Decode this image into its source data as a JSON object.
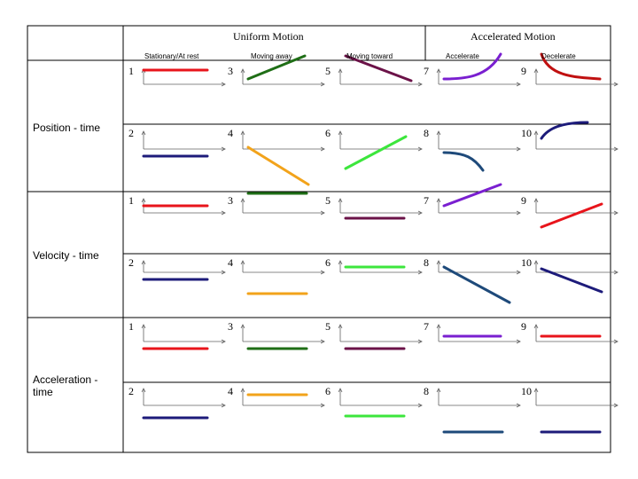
{
  "headers": {
    "uniform": "Uniform Motion",
    "accelerated": "Accelerated Motion"
  },
  "subheaders": [
    "Stationary/At rest",
    "Moving away",
    "Moving toward",
    "Accelerate",
    "Decelerate"
  ],
  "row_labels": {
    "position": "Position - time",
    "velocity": "Velocity - time",
    "acceleration_line1": "Acceleration -",
    "acceleration_line2": "time"
  },
  "numbers": {
    "odd": [
      "1",
      "3",
      "5",
      "7",
      "9"
    ],
    "even": [
      "2",
      "4",
      "6",
      "8",
      "10"
    ]
  },
  "colors": {
    "red": "#e8141b",
    "navy": "#1d1b7a",
    "darkgreen": "#1f6e16",
    "orange": "#f2a31b",
    "maroon": "#6b1248",
    "limegreen": "#3ce63c",
    "purple": "#7a1fd0",
    "darkred": "#c01010",
    "steelblue": "#1e4a7a",
    "gray": "#606060"
  }
}
